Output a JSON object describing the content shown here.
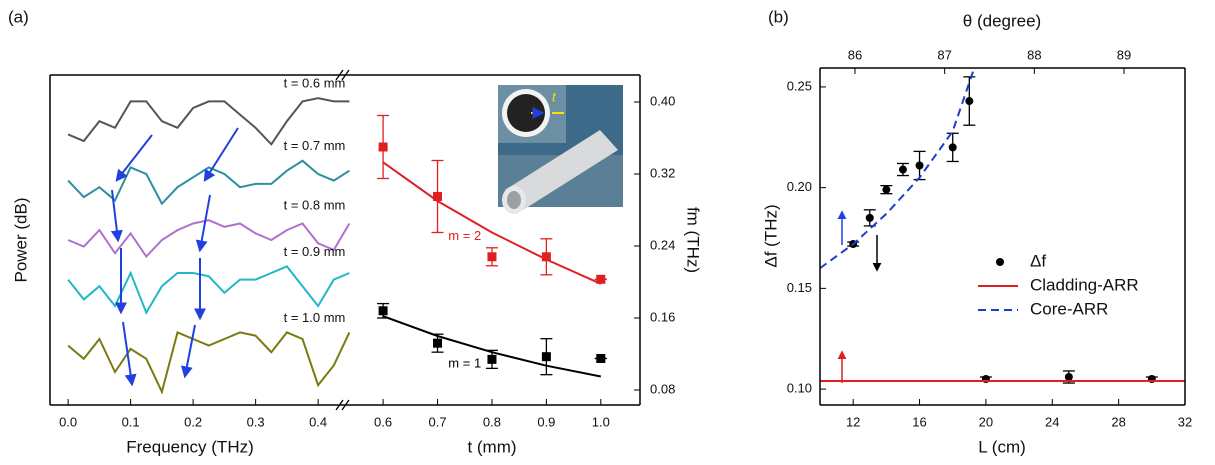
{
  "chart_data": [
    {
      "type": "line",
      "panel": "(a)",
      "xlabel": "Frequency (THz)",
      "ylabel": "Power (dB)",
      "xlim": [
        -0.029,
        0.443
      ],
      "ylim": [
        0,
        100
      ],
      "xticks": [
        {
          "value": 0,
          "label": "0.0"
        },
        0.1,
        0.2,
        0.3,
        0.4
      ],
      "x": [
        0,
        0.025,
        0.05,
        0.075,
        0.1,
        0.125,
        0.15,
        0.175,
        0.2,
        0.225,
        0.25,
        0.275,
        0.3,
        0.325,
        0.35,
        0.375,
        0.4,
        0.425,
        0.45
      ],
      "series": [
        {
          "name": "t = 0.6 mm",
          "color": "#555555",
          "values": [
            82,
            80,
            86,
            84,
            92,
            92,
            86,
            84,
            90,
            92,
            92,
            88,
            84,
            79,
            86,
            92,
            93,
            92,
            92
          ]
        },
        {
          "name": "t = 0.7 mm",
          "color": "#2a8fa0",
          "values": [
            68,
            63,
            66,
            62,
            72,
            70,
            61,
            66,
            69,
            72,
            70,
            66,
            67,
            67,
            71,
            74,
            70,
            68,
            71
          ]
        },
        {
          "name": "t = 0.8 mm",
          "color": "#b070d0",
          "values": [
            50,
            48,
            53,
            46,
            52,
            45,
            50,
            53,
            55,
            56,
            54,
            55,
            52,
            50,
            53,
            55,
            49,
            47,
            55
          ]
        },
        {
          "name": "t = 0.9 mm",
          "color": "#20b8c8",
          "values": [
            38,
            32,
            36,
            30,
            40,
            28,
            36,
            40,
            40,
            39,
            34,
            38,
            38,
            40,
            42,
            36,
            30,
            38,
            40
          ]
        },
        {
          "name": "t = 1.0 mm",
          "color": "#7a7a10",
          "values": [
            18,
            14,
            20,
            10,
            17,
            14,
            4,
            22,
            20,
            18,
            20,
            22,
            21,
            16,
            22,
            20,
            6,
            12,
            22
          ]
        }
      ]
    },
    {
      "type": "errorbar",
      "xlabel": "t (mm)",
      "ylabel": "fm (THz)",
      "inset_label": "t",
      "xlim": [
        0.53,
        1.072
      ],
      "ylim": [
        0.0633,
        0.43
      ],
      "xticks": [
        0.6,
        0.7,
        0.8,
        0.9,
        {
          "value": 1,
          "label": "1.0"
        }
      ],
      "yticks": [
        0.08,
        0.16,
        0.24,
        0.32,
        {
          "value": 0.4,
          "label": "0.40"
        }
      ],
      "x": [
        0.6,
        0.7,
        0.8,
        0.9,
        1.0
      ],
      "series": [
        {
          "name": "m = 2",
          "color": "#e02020",
          "values": [
            0.35,
            0.295,
            0.228,
            0.228,
            0.203
          ],
          "errors": [
            0.035,
            0.04,
            0.01,
            0.02,
            0
          ],
          "fit": [
            0.333,
            0.29,
            0.255,
            0.225,
            0.198
          ]
        },
        {
          "name": "m = 1",
          "color": "#000000",
          "values": [
            0.168,
            0.132,
            0.114,
            0.117,
            0.115
          ],
          "errors": [
            0.008,
            0.01,
            0.01,
            0.02,
            0
          ],
          "fit": [
            0.162,
            0.14,
            0.122,
            0.107,
            0.095
          ]
        }
      ]
    },
    {
      "type": "mixed",
      "panel": "(b)",
      "xlabel": "L (cm)",
      "ylabel": "Δf (THz)",
      "x2label": "θ (degree)",
      "xlim": [
        10,
        32
      ],
      "ylim": [
        0.0921,
        0.2594
      ],
      "x2lim": [
        85.61,
        89.68
      ],
      "xticks": [
        12,
        16,
        20,
        24,
        28,
        32
      ],
      "yticks": [
        {
          "value": 0.1,
          "label": "0.10"
        },
        0.15,
        {
          "value": 0.2,
          "label": "0.20"
        },
        0.25
      ],
      "x2ticks": [
        86,
        87,
        88,
        89
      ],
      "legend": "center right",
      "series": [
        {
          "name": "Δf",
          "kind": "scatter",
          "color": "#000000",
          "x": [
            12,
            13,
            14,
            15,
            16,
            18,
            19,
            20,
            25,
            30
          ],
          "values": [
            0.172,
            0.185,
            0.199,
            0.209,
            0.211,
            0.22,
            0.243,
            0.105,
            0.106,
            0.105
          ],
          "errors": [
            0.001,
            0.004,
            0.002,
            0.003,
            0.007,
            0.007,
            0.012,
            0.001,
            0.003,
            0.001
          ]
        },
        {
          "name": "Cladding-ARR",
          "kind": "line",
          "color": "#e02020",
          "x": [
            10,
            32
          ],
          "values": [
            0.104,
            0.104
          ]
        },
        {
          "name": "Core-ARR",
          "kind": "dashed",
          "color": "#1a3fd0",
          "x": [
            10,
            12,
            14,
            16,
            18,
            19.4
          ],
          "values": [
            0.16,
            0.172,
            0.187,
            0.205,
            0.228,
            0.262
          ]
        }
      ]
    }
  ]
}
